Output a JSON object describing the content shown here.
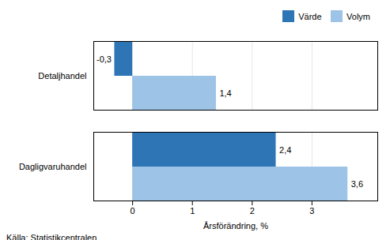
{
  "chart_data": {
    "type": "bar",
    "orientation": "horizontal",
    "categories": [
      "Dagligvaruhandel",
      "Detaljhandel"
    ],
    "series": [
      {
        "name": "Värde",
        "color": "#2E75B6",
        "values": [
          2.4,
          -0.3
        ],
        "value_labels": [
          "2,4",
          "-0,3"
        ]
      },
      {
        "name": "Volym",
        "color": "#9DC3E6",
        "values": [
          3.6,
          1.4
        ],
        "value_labels": [
          "3,6",
          "1,4"
        ]
      }
    ],
    "xlabel": "Årsförändring, %",
    "xlim": [
      -0.65,
      4.1
    ],
    "xticks": [
      0,
      1,
      2,
      3
    ],
    "grid": true,
    "legend": "upper right",
    "data_labels": true,
    "annotations": [
      "Källa: Statistikcentralen"
    ]
  }
}
